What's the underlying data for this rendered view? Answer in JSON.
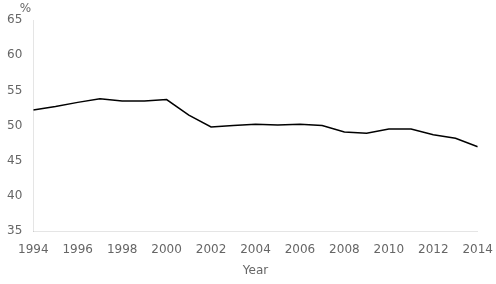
{
  "chart_data": {
    "type": "line",
    "x": [
      1994,
      1995,
      1996,
      1997,
      1998,
      1999,
      2000,
      2001,
      2002,
      2003,
      2004,
      2005,
      2006,
      2007,
      2008,
      2009,
      2010,
      2011,
      2012,
      2013,
      2014
    ],
    "values": [
      52.2,
      52.7,
      53.3,
      53.8,
      53.5,
      53.5,
      53.7,
      51.5,
      49.8,
      50.0,
      50.2,
      50.1,
      50.2,
      50.0,
      49.1,
      48.9,
      49.5,
      49.5,
      48.7,
      48.2,
      47.0
    ],
    "xlabel": "Year",
    "annotation": "%",
    "xlim": [
      1994,
      2014
    ],
    "ylim": [
      35,
      65
    ],
    "xticks": [
      1994,
      1996,
      1998,
      2000,
      2002,
      2004,
      2006,
      2008,
      2010,
      2012,
      2014
    ],
    "yticks": [
      35,
      40,
      45,
      50,
      55,
      60,
      65
    ],
    "color": "#000000",
    "grid": false
  }
}
